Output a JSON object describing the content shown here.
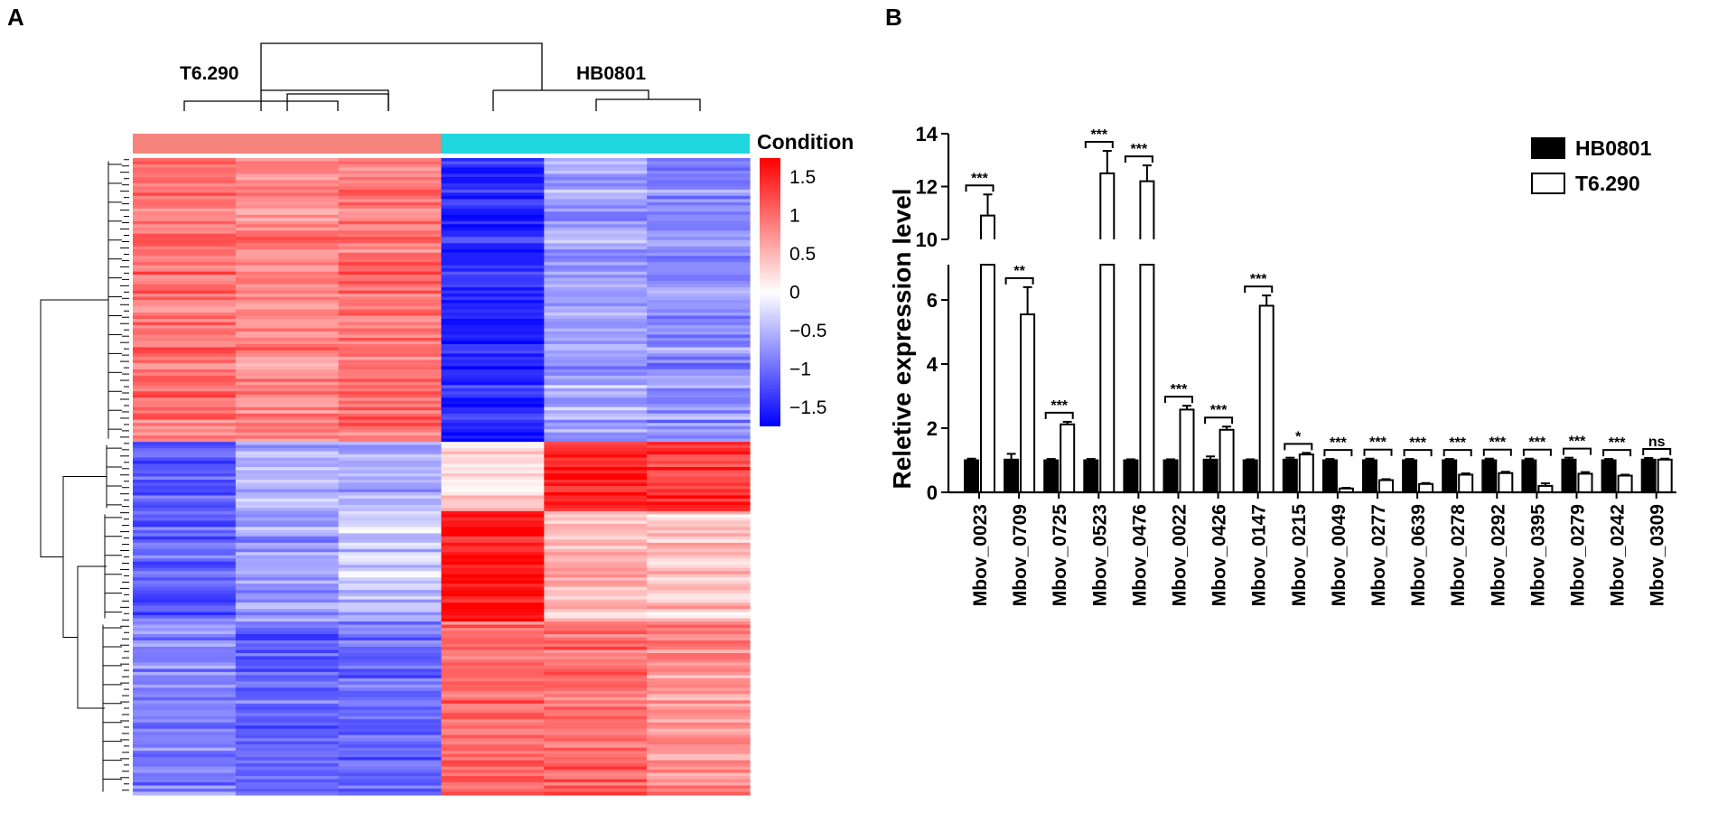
{
  "panels": {
    "a": "A",
    "b": "B"
  },
  "heatmap": {
    "groups": [
      "T6.290",
      "HB0801"
    ],
    "condition_colors": [
      "#f4847c",
      "#1fd6dc"
    ],
    "colorbar": {
      "title": "Condition",
      "ticks": [
        1.5,
        1,
        0.5,
        0,
        -0.5,
        -1,
        -1.5
      ],
      "tick_labels": [
        "1.5",
        "1",
        "0.5",
        "0",
        "−0.5",
        "−1",
        "−1.5"
      ],
      "range": [
        -1.75,
        1.75
      ],
      "colors": {
        "low": "#0000ff",
        "mid": "#ffffff",
        "high": "#ff0000"
      }
    },
    "clusters": [
      {
        "rows": 90,
        "means": [
          1.0,
          0.85,
          1.0,
          -1.45,
          -0.6,
          -0.75
        ]
      },
      {
        "rows": 22,
        "means": [
          -1.2,
          -0.5,
          -0.6,
          0.3,
          1.5,
          1.35
        ]
      },
      {
        "rows": 35,
        "means": [
          -1.1,
          -0.65,
          -0.4,
          1.65,
          0.5,
          0.4
        ]
      },
      {
        "rows": 55,
        "means": [
          -0.85,
          -1.05,
          -1.0,
          1.0,
          1.05,
          0.8
        ]
      }
    ]
  },
  "chart_data": {
    "type": "bar",
    "title": "",
    "xlabel": "",
    "ylabel": "Reletive expression level",
    "ylim": [
      0,
      14
    ],
    "axis_break": [
      7.1,
      10
    ],
    "yticks": [
      0,
      2,
      4,
      6,
      10,
      12,
      14
    ],
    "categories": [
      "Mbov_0023",
      "Mbov_0709",
      "Mbov_0725",
      "Mbov_0523",
      "Mbov_0476",
      "Mbov_0022",
      "Mbov_0426",
      "Mbov_0147",
      "Mbov_0215",
      "Mbov_0049",
      "Mbov_0277",
      "Mbov_0639",
      "Mbov_0278",
      "Mbov_0292",
      "Mbov_0395",
      "Mbov_0279",
      "Mbov_0242",
      "Mbov_0309"
    ],
    "series": [
      {
        "name": "HB0801",
        "color": "#000000",
        "values": [
          1.0,
          1.02,
          1.0,
          1.0,
          1.0,
          1.0,
          1.02,
          1.0,
          1.02,
          1.0,
          1.0,
          1.0,
          1.0,
          1.0,
          1.0,
          1.02,
          1.0,
          1.02
        ],
        "errors": [
          0.05,
          0.18,
          0.04,
          0.04,
          0.03,
          0.03,
          0.1,
          0.03,
          0.06,
          0.04,
          0.05,
          0.04,
          0.04,
          0.05,
          0.05,
          0.06,
          0.04,
          0.05
        ]
      },
      {
        "name": "T6.290",
        "color": "#ffffff",
        "values": [
          10.9,
          5.55,
          2.12,
          12.5,
          12.2,
          2.58,
          1.95,
          5.82,
          1.18,
          0.12,
          0.38,
          0.26,
          0.55,
          0.6,
          0.2,
          0.58,
          0.52,
          1.02
        ],
        "errors": [
          0.8,
          0.85,
          0.08,
          0.85,
          0.6,
          0.12,
          0.1,
          0.32,
          0.05,
          0.02,
          0.03,
          0.03,
          0.04,
          0.04,
          0.08,
          0.05,
          0.03,
          0.03
        ]
      }
    ],
    "significance": [
      "***",
      "**",
      "***",
      "***",
      "***",
      "***",
      "***",
      "***",
      "*",
      "***",
      "***",
      "***",
      "***",
      "***",
      "***",
      "***",
      "***",
      "ns"
    ],
    "legend_position": "top-right"
  }
}
